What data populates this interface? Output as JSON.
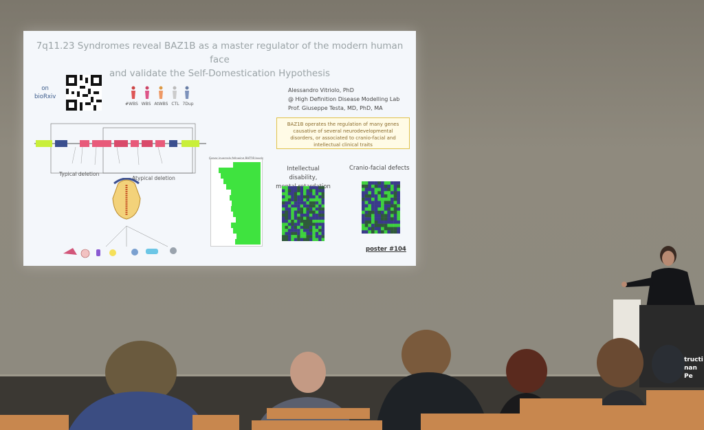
{
  "slide": {
    "title_line1": "7q11.23 Syndromes reveal BAZ1B as a master regulator of the modern human face",
    "title_line2": "and validate the Self-Domestication Hypothesis",
    "qr_label_line1": "on",
    "qr_label_line2": "bioRxiv",
    "groups": "#WBS WBS AtWBS CTL 7Dup",
    "author_name": "Alessandro Vitriolo, PhD",
    "author_lab": "@ High Definition Disease Modelling Lab",
    "author_prof": "Prof. Giuseppe Testa, MD, PhD, MA",
    "note_text": "BAZ1B operates the regulation of many genes causative of several neurodevelopmental disorders, or associated to cranio-facial and intellectual clinical traits",
    "typical_deletion": "Typical deletion",
    "atypical_deletion": "Atypical deletion",
    "label_intellectual_1": "Intellectual disability,",
    "label_intellectual_2": "mental retardation",
    "label_craniofacial": "Cranio-facial defects",
    "poster": "poster #104",
    "bar_chart_title": "Genes inversely following BAZ1B levels",
    "bar_values": [
      0.55,
      0.85,
      0.8,
      0.75,
      0.7,
      0.6,
      0.62,
      0.58,
      0.6,
      0.55,
      0.5,
      0.6,
      0.55,
      0.48,
      0.52
    ]
  },
  "podium": {
    "text_line1": "tructi",
    "text_line2": "nan Pe"
  },
  "colors": {
    "bar_green": "#3fe33f",
    "note_border": "#e0c24a",
    "slide_bg": "#f4f7fb"
  }
}
